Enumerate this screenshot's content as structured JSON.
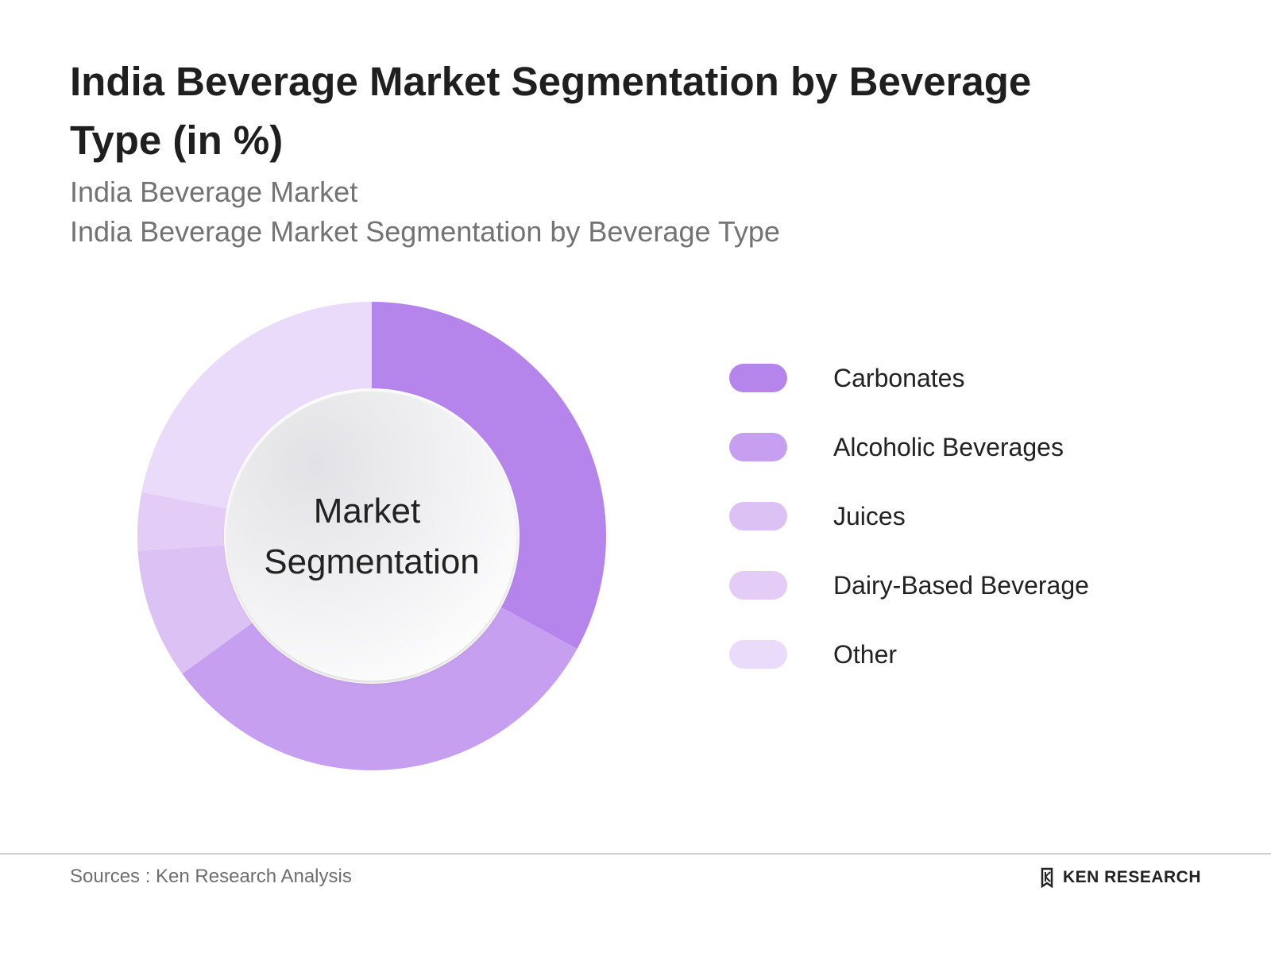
{
  "header": {
    "title": "India Beverage Market Segmentation by Beverage Type (in %)",
    "subtitle1": "India Beverage Market",
    "subtitle2": "India Beverage Market Segmentation by Beverage Type"
  },
  "chart_data": {
    "type": "pie",
    "variant": "donut",
    "center_label": [
      "Market",
      "Segmentation"
    ],
    "categories": [
      "Carbonates",
      "Alcoholic Beverages",
      "Juices",
      "Dairy-Based Beverage",
      "Other"
    ],
    "values": [
      33,
      32,
      9,
      4,
      22
    ],
    "colors": [
      "#b585ec",
      "#c79ff0",
      "#dcc1f5",
      "#e3cdf7",
      "#ebdbfa"
    ],
    "legend_position": "right"
  },
  "footer": {
    "source": "Sources : Ken Research Analysis",
    "brand": "KEN RESEARCH"
  }
}
